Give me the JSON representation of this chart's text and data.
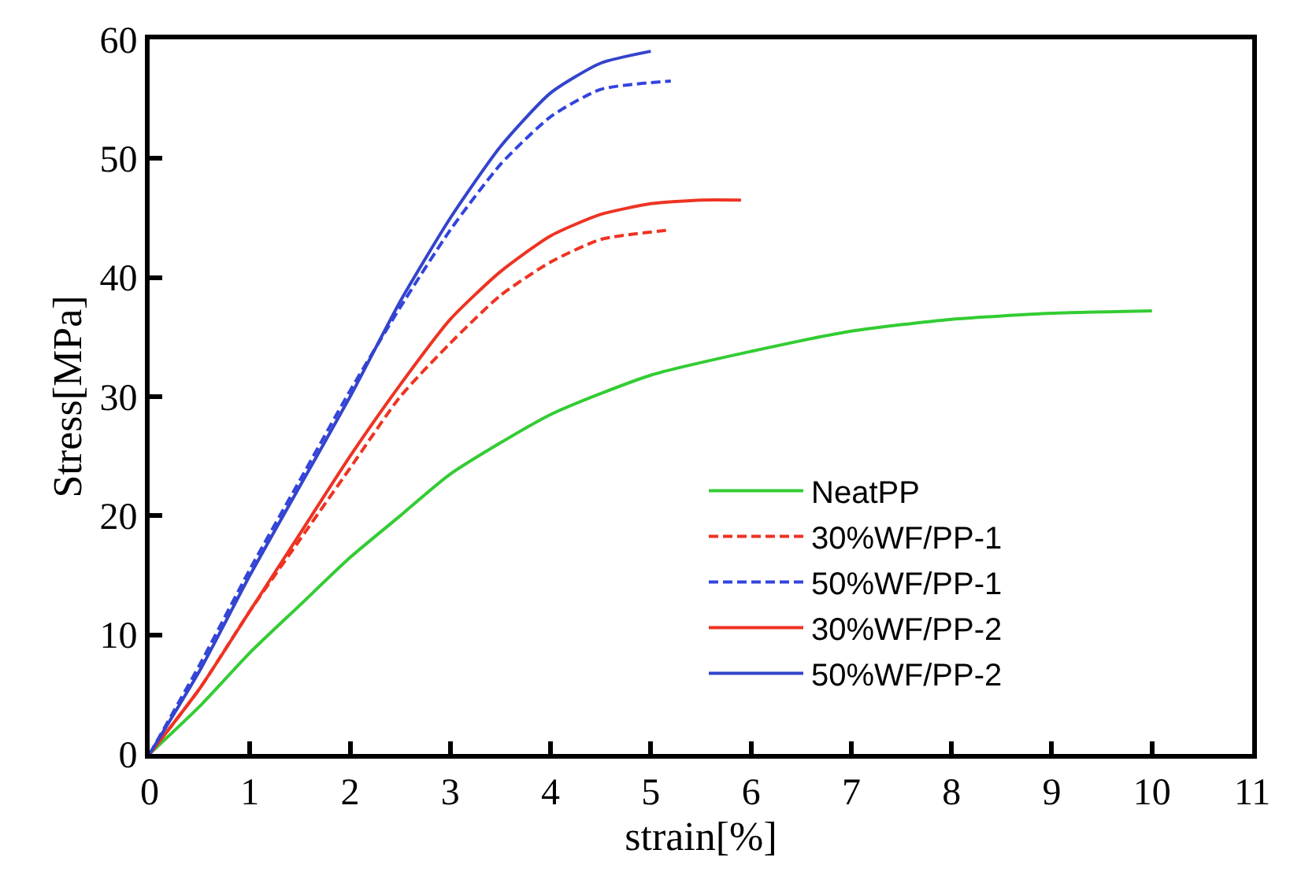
{
  "chart_data": {
    "type": "line",
    "xlabel": "strain[%]",
    "ylabel": "Stress[MPa]",
    "xlim": [
      0,
      11
    ],
    "xticks": [
      0,
      1,
      2,
      3,
      4,
      5,
      6,
      7,
      8,
      9,
      10,
      11
    ],
    "ylim": [
      0,
      60
    ],
    "yticks": [
      0,
      10,
      20,
      30,
      40,
      50,
      60
    ],
    "legend": "bottom right",
    "marker": "none",
    "series": [
      {
        "name": "NeatPP",
        "color": "#33cc33",
        "line_style": "solid",
        "x": [
          0,
          0.5,
          1,
          1.5,
          2,
          2.5,
          3,
          4,
          5,
          6,
          7,
          8,
          9,
          10
        ],
        "values": [
          0,
          4,
          8.5,
          12.5,
          16.5,
          20,
          23.5,
          28.5,
          31.8,
          33.8,
          35.5,
          36.5,
          37,
          37.2
        ]
      },
      {
        "name": "30%WF/PP-1",
        "color": "#ee3322",
        "line_style": "dashed",
        "x": [
          0,
          0.5,
          1,
          1.5,
          2,
          2.5,
          3,
          3.5,
          4,
          4.5,
          5.2
        ],
        "values": [
          0,
          5.5,
          12,
          18,
          24,
          30,
          34.5,
          38.5,
          41.3,
          43.2,
          44
        ]
      },
      {
        "name": "50%WF/PP-1",
        "color": "#3344dd",
        "line_style": "dashed",
        "x": [
          0,
          0.5,
          1,
          1.5,
          2,
          2.5,
          3,
          3.5,
          4,
          4.5,
          5.2
        ],
        "values": [
          0,
          7.5,
          15.5,
          23,
          30.5,
          37.5,
          44,
          49.5,
          53.5,
          55.8,
          56.5
        ]
      },
      {
        "name": "30%WF/PP-2",
        "color": "#ee3322",
        "line_style": "solid",
        "x": [
          0,
          0.5,
          1,
          1.5,
          2,
          2.5,
          3,
          3.5,
          4,
          4.5,
          5,
          5.5,
          5.9
        ],
        "values": [
          0,
          5.5,
          12,
          18.5,
          25,
          31,
          36.5,
          40.5,
          43.5,
          45.3,
          46.2,
          46.5,
          46.5
        ]
      },
      {
        "name": "50%WF/PP-2",
        "color": "#3344cc",
        "line_style": "solid",
        "x": [
          0,
          0.5,
          1,
          1.5,
          2,
          2.5,
          3,
          3.5,
          4,
          4.5,
          5
        ],
        "values": [
          0,
          7,
          15,
          22.5,
          30,
          38,
          45,
          51,
          55.5,
          58,
          59
        ]
      }
    ]
  }
}
